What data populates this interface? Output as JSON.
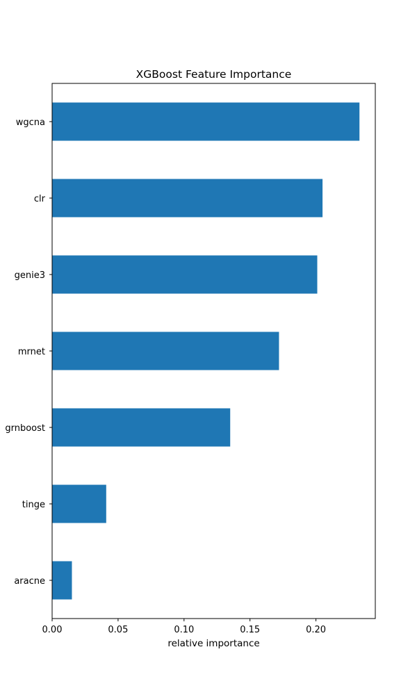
{
  "chart_data": {
    "type": "bar",
    "orientation": "horizontal",
    "title": "XGBoost Feature Importance",
    "xlabel": "relative importance",
    "ylabel": "",
    "categories": [
      "wgcna",
      "clr",
      "genie3",
      "mrnet",
      "grnboost",
      "tinge",
      "aracne"
    ],
    "values": [
      0.233,
      0.205,
      0.201,
      0.172,
      0.135,
      0.041,
      0.015
    ],
    "xlim": [
      0,
      0.245
    ],
    "xticks": [
      "0.00",
      "0.05",
      "0.10",
      "0.15",
      "0.20"
    ],
    "bar_color": "#1f77b4",
    "grid": false,
    "legend": "none"
  }
}
